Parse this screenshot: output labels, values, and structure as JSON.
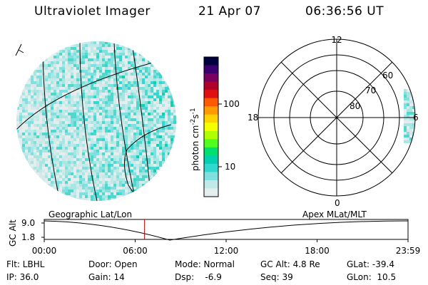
{
  "header": {
    "title": "Ultraviolet Imager",
    "date": "21 Apr 07",
    "time": "06:36:56 UT"
  },
  "colorbar": {
    "label": "photon cm",
    "label_exp1": "-2",
    "label_s": "s",
    "label_exp2": "-1",
    "ticks": [
      "100",
      "10"
    ],
    "scale": "log",
    "colors": [
      "#000040",
      "#3a0070",
      "#7a0060",
      "#b00028",
      "#e01010",
      "#ff5a00",
      "#ff9a00",
      "#ffd200",
      "#f5ff00",
      "#b0ff00",
      "#50ff20",
      "#00e070",
      "#00d0b0",
      "#30d8d0",
      "#80e0e0",
      "#c0eaea",
      "#e4eeee"
    ]
  },
  "polar_plot": {
    "mlt_labels": {
      "top": "12",
      "left": "18",
      "right": "6",
      "bottom": "0"
    },
    "lat_labels": [
      "60",
      "70",
      "80"
    ]
  },
  "timeline": {
    "left_label": "Geographic Lat/Lon",
    "right_label": "Apex MLat/MLT",
    "y_axis_label": "GC Alt",
    "y_ticks": [
      "9.0",
      "1.8"
    ],
    "x_ticks": [
      "00:00",
      "06:00",
      "12:00",
      "18:00",
      "23:59"
    ],
    "current_time_fraction": 0.2757,
    "marker_color": "#d00000"
  },
  "status": {
    "flt": "Flt: LBHL",
    "ip": "IP: 36.0",
    "door": "Door: Open",
    "gain": "Gain: 14",
    "mode": "Mode: Normal",
    "dsp": "Dsp:    -6.9",
    "gc_alt": "GC Alt: 4.8 Re",
    "seq": "Seq: 39",
    "glat": "GLat: -39.4",
    "glon": "GLon:  10.5"
  }
}
